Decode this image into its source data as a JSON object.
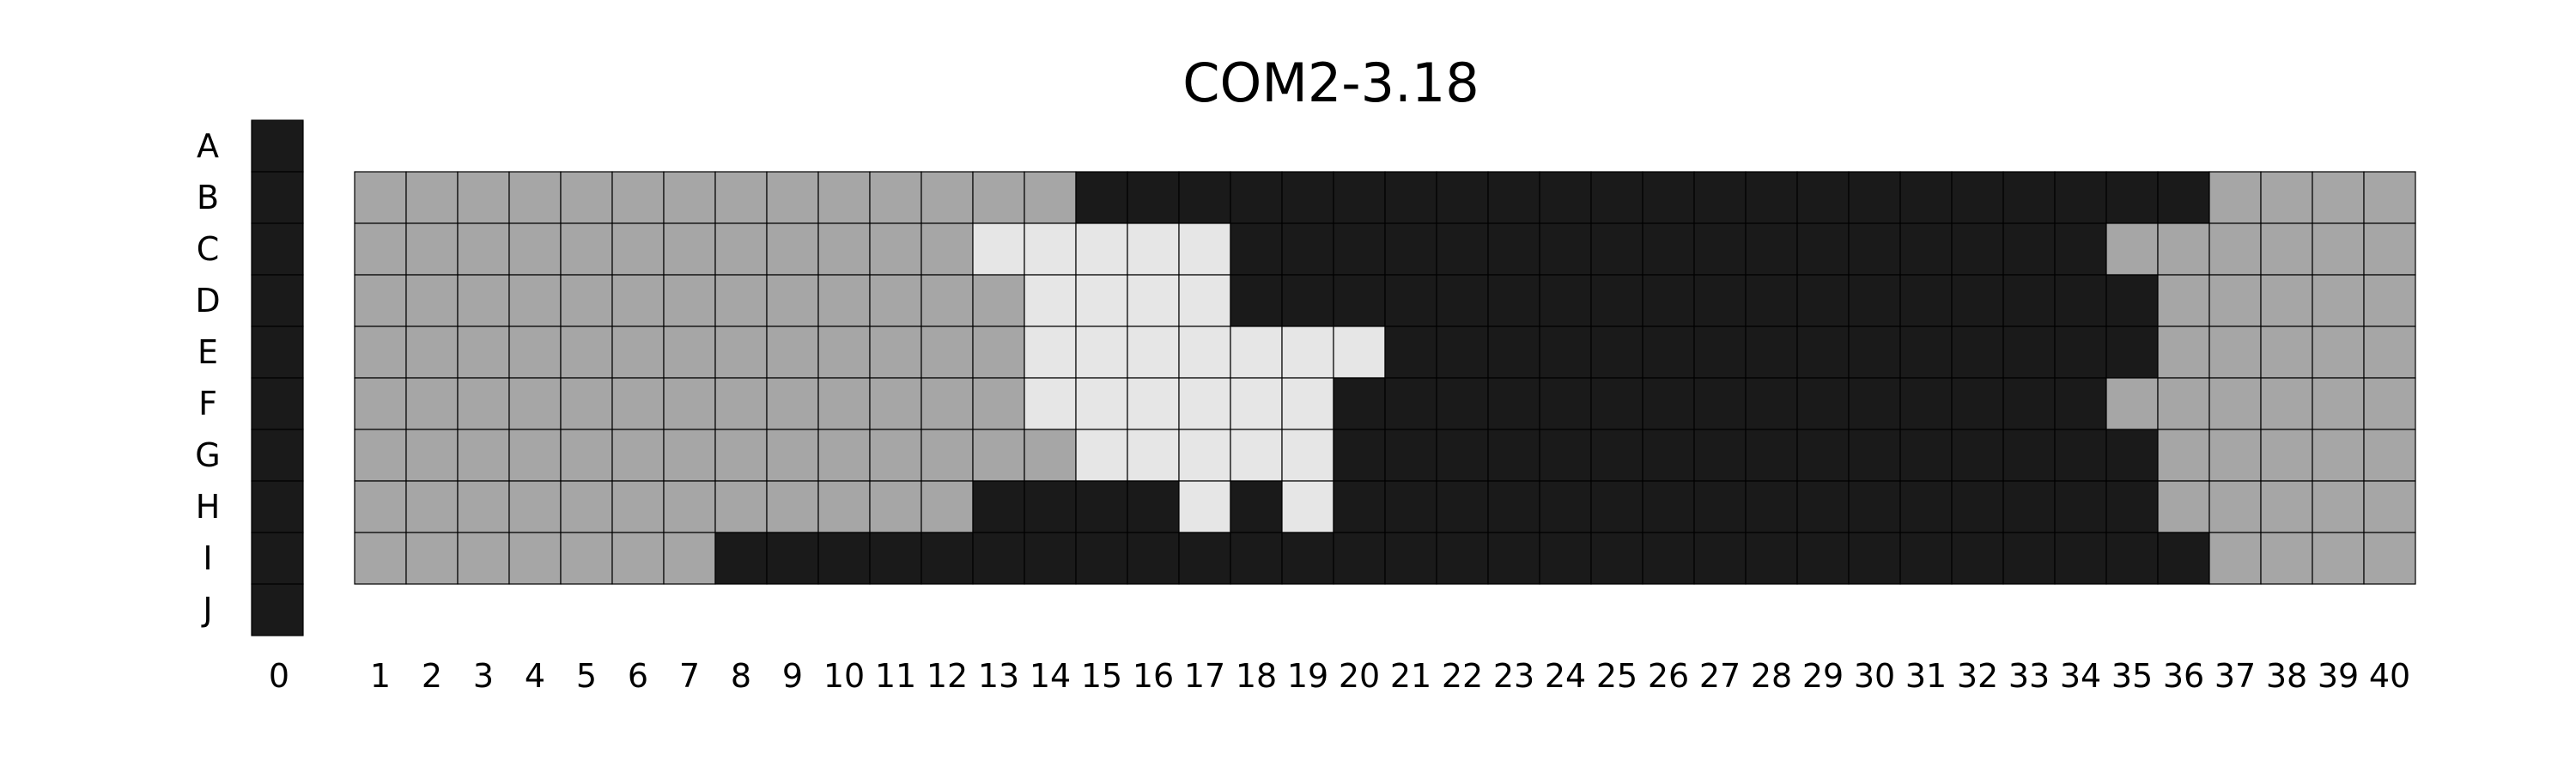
{
  "chart_data": {
    "type": "heatmap",
    "title": "COM2-3.18",
    "rows": [
      "A",
      "B",
      "C",
      "D",
      "E",
      "F",
      "G",
      "H",
      "I",
      "J"
    ],
    "column0": {
      "label": "0",
      "state": "D"
    },
    "columns": [
      "1",
      "2",
      "3",
      "4",
      "5",
      "6",
      "7",
      "8",
      "9",
      "10",
      "11",
      "12",
      "13",
      "14",
      "15",
      "16",
      "17",
      "18",
      "19",
      "20",
      "21",
      "22",
      "23",
      "24",
      "25",
      "26",
      "27",
      "28",
      "29",
      "30",
      "31",
      "32",
      "33",
      "34",
      "35",
      "36",
      "37",
      "38",
      "39",
      "40"
    ],
    "grid_rows": [
      "B",
      "C",
      "D",
      "E",
      "F",
      "G",
      "H",
      "I"
    ],
    "grid": [
      "MMMMMMMMMMMMMMDDDDDDDDDDDDDDDDDDDDDDMMMM",
      "MMMMMMMMMMMMLLLLLDDDDDDDDDDDDDDDDDMMMMMM",
      "MMMMMMMMMMMMMLLLLDDDDDDDDDDDDDDDDDDMMMMM",
      "MMMMMMMMMMMMMLLLLLLLDDDDDDDDDDDDDDDMMMMM",
      "MMMMMMMMMMMMMLLLLLLDDDDDDDDDDDDDDDMMMMMM",
      "MMMMMMMMMMMMMMLLLLLDDDDDDDDDDDDDDDDMMMMM",
      "MMMMMMMMMMMMDDDDLDLDDDDDDDDDDDDDDDDMMMMM",
      "MMMMMMMDDDDDDDDDDDDDDDDDDDDDDDDDDDDDMMMM"
    ],
    "colors": {
      "D": "#1a1a1a",
      "M": "#a6a6a6",
      "L": "#e6e6e6"
    }
  }
}
